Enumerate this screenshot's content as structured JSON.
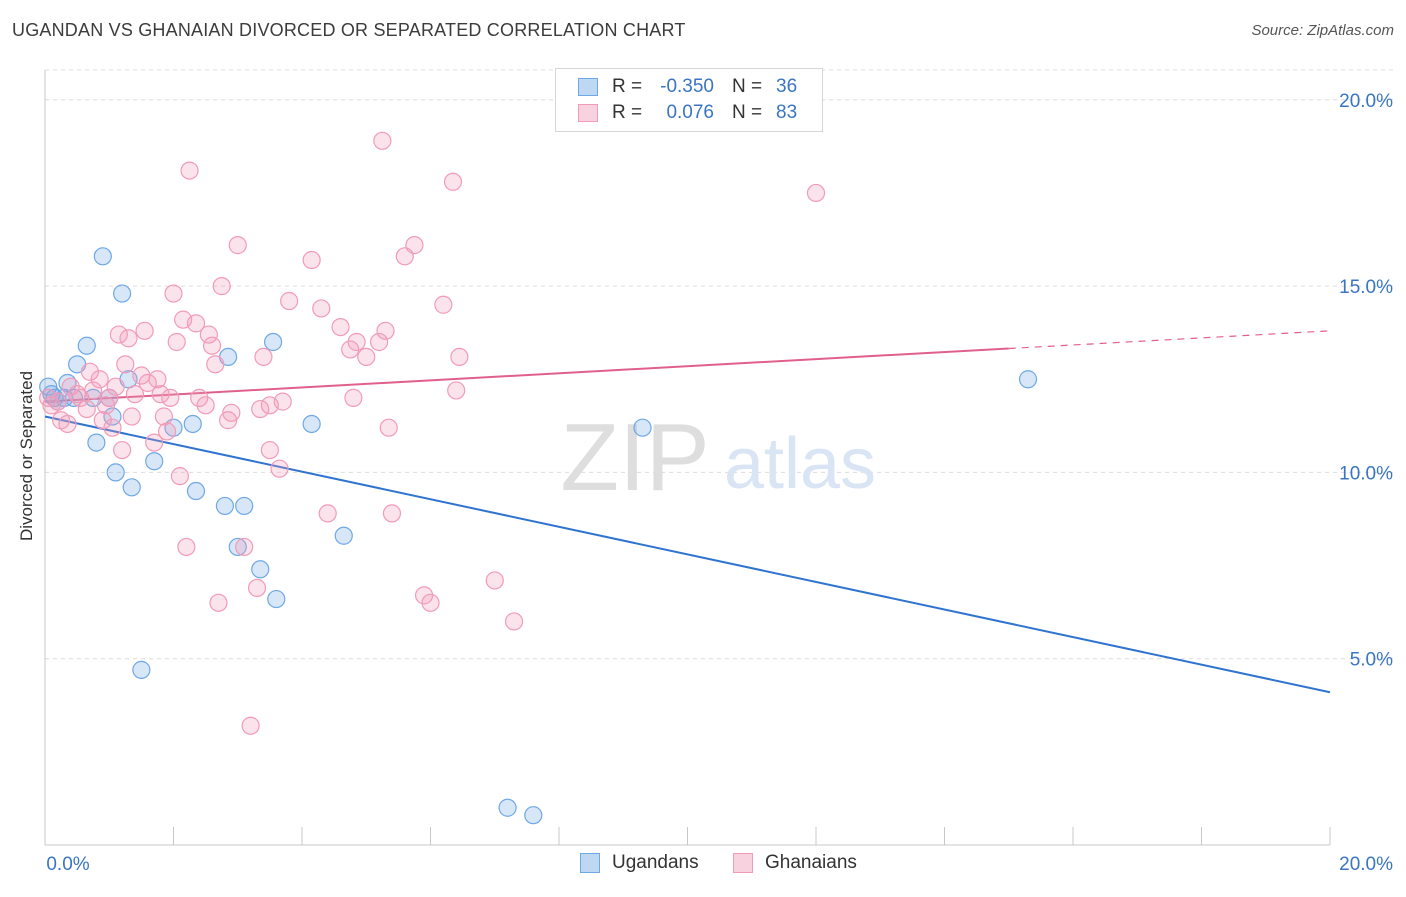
{
  "title": "UGANDAN VS GHANAIAN DIVORCED OR SEPARATED CORRELATION CHART",
  "source": "Source: ZipAtlas.com",
  "watermark": {
    "zip": "ZIP",
    "atlas": "atlas"
  },
  "legend_top": [
    {
      "r_label": "R =",
      "r_value": "-0.350",
      "n_label": "N =",
      "n_value": "36",
      "color": "#6fa8e6"
    },
    {
      "r_label": "R =",
      "r_value": "0.076",
      "n_label": "N =",
      "n_value": "83",
      "color": "#f29bb8"
    }
  ],
  "legend_bottom": [
    {
      "label": "Ugandans",
      "color": "#6fa8e6"
    },
    {
      "label": "Ghanaians",
      "color": "#f29bb8"
    }
  ],
  "chart_data": {
    "type": "scatter",
    "title": "UGANDAN VS GHANAIAN DIVORCED OR SEPARATED CORRELATION CHART",
    "xlabel": "",
    "ylabel": "Divorced or Separated",
    "xlim": [
      0,
      20
    ],
    "ylim": [
      0,
      20.8
    ],
    "x_tick_labels": [
      "0.0%",
      "20.0%"
    ],
    "y_ticks": [
      5,
      10,
      15,
      20
    ],
    "y_tick_labels": [
      "5.0%",
      "10.0%",
      "15.0%",
      "20.0%"
    ],
    "grid": true,
    "legend_position": "top-center",
    "series": [
      {
        "name": "Ugandans",
        "color": "#6fa8e6",
        "line_color": "#2f74d0",
        "trend": {
          "x": [
            0,
            20
          ],
          "y": [
            11.5,
            4.1
          ],
          "dashed_from": null
        },
        "points": [
          [
            0.05,
            12.3
          ],
          [
            0.1,
            12.1
          ],
          [
            0.15,
            12.0
          ],
          [
            0.2,
            11.9
          ],
          [
            0.3,
            12.0
          ],
          [
            0.35,
            12.4
          ],
          [
            0.45,
            12.0
          ],
          [
            0.5,
            12.9
          ],
          [
            0.65,
            13.4
          ],
          [
            0.75,
            12.0
          ],
          [
            0.8,
            10.8
          ],
          [
            0.9,
            15.8
          ],
          [
            1.0,
            12.0
          ],
          [
            1.05,
            11.5
          ],
          [
            1.1,
            10.0
          ],
          [
            1.2,
            14.8
          ],
          [
            1.3,
            12.5
          ],
          [
            1.35,
            9.6
          ],
          [
            1.5,
            4.7
          ],
          [
            1.7,
            10.3
          ],
          [
            2.0,
            11.2
          ],
          [
            2.3,
            11.3
          ],
          [
            2.35,
            9.5
          ],
          [
            2.8,
            9.1
          ],
          [
            2.85,
            13.1
          ],
          [
            3.0,
            8.0
          ],
          [
            3.1,
            9.1
          ],
          [
            3.35,
            7.4
          ],
          [
            3.55,
            13.5
          ],
          [
            3.6,
            6.6
          ],
          [
            4.15,
            11.3
          ],
          [
            4.65,
            8.3
          ],
          [
            7.2,
            1.0
          ],
          [
            7.6,
            0.8
          ],
          [
            9.3,
            11.2
          ],
          [
            15.3,
            12.5
          ]
        ]
      },
      {
        "name": "Ghanaians",
        "color": "#f29bb8",
        "line_color": "#e0608a",
        "trend": {
          "x": [
            0,
            20
          ],
          "y": [
            11.9,
            13.8
          ],
          "dashed_from": 15.0
        },
        "points": [
          [
            0.05,
            12.0
          ],
          [
            0.1,
            11.8
          ],
          [
            0.2,
            11.9
          ],
          [
            0.25,
            11.4
          ],
          [
            0.35,
            11.3
          ],
          [
            0.4,
            12.3
          ],
          [
            0.5,
            12.1
          ],
          [
            0.55,
            12.0
          ],
          [
            0.65,
            11.7
          ],
          [
            0.7,
            12.7
          ],
          [
            0.75,
            12.2
          ],
          [
            0.85,
            12.5
          ],
          [
            0.9,
            11.4
          ],
          [
            0.95,
            11.8
          ],
          [
            1.0,
            12.0
          ],
          [
            1.05,
            11.2
          ],
          [
            1.1,
            12.3
          ],
          [
            1.15,
            13.7
          ],
          [
            1.2,
            10.6
          ],
          [
            1.25,
            12.9
          ],
          [
            1.3,
            13.6
          ],
          [
            1.35,
            11.5
          ],
          [
            1.4,
            12.1
          ],
          [
            1.5,
            12.6
          ],
          [
            1.55,
            13.8
          ],
          [
            1.6,
            12.4
          ],
          [
            1.7,
            10.8
          ],
          [
            1.75,
            12.5
          ],
          [
            1.8,
            12.1
          ],
          [
            1.85,
            11.5
          ],
          [
            1.9,
            11.1
          ],
          [
            1.95,
            12.0
          ],
          [
            2.0,
            14.8
          ],
          [
            2.05,
            13.5
          ],
          [
            2.1,
            9.9
          ],
          [
            2.15,
            14.1
          ],
          [
            2.2,
            8.0
          ],
          [
            2.25,
            18.1
          ],
          [
            2.35,
            14.0
          ],
          [
            2.4,
            12.0
          ],
          [
            2.5,
            11.8
          ],
          [
            2.55,
            13.7
          ],
          [
            2.6,
            13.4
          ],
          [
            2.65,
            12.9
          ],
          [
            2.7,
            6.5
          ],
          [
            2.75,
            15.0
          ],
          [
            2.85,
            11.4
          ],
          [
            2.9,
            11.6
          ],
          [
            3.0,
            16.1
          ],
          [
            3.1,
            8.0
          ],
          [
            3.2,
            3.2
          ],
          [
            3.3,
            6.9
          ],
          [
            3.35,
            11.7
          ],
          [
            3.4,
            13.1
          ],
          [
            3.5,
            11.8
          ],
          [
            3.5,
            10.6
          ],
          [
            3.65,
            10.1
          ],
          [
            3.7,
            11.9
          ],
          [
            3.8,
            14.6
          ],
          [
            4.15,
            15.7
          ],
          [
            4.3,
            14.4
          ],
          [
            4.4,
            8.9
          ],
          [
            4.6,
            13.9
          ],
          [
            4.75,
            13.3
          ],
          [
            4.8,
            12.0
          ],
          [
            4.85,
            13.5
          ],
          [
            5.0,
            13.1
          ],
          [
            5.2,
            13.5
          ],
          [
            5.25,
            18.9
          ],
          [
            5.3,
            13.8
          ],
          [
            5.35,
            11.2
          ],
          [
            5.4,
            8.9
          ],
          [
            5.6,
            15.8
          ],
          [
            5.75,
            16.1
          ],
          [
            5.9,
            6.7
          ],
          [
            6.0,
            6.5
          ],
          [
            6.2,
            14.5
          ],
          [
            6.35,
            17.8
          ],
          [
            6.4,
            12.2
          ],
          [
            6.45,
            13.1
          ],
          [
            7.0,
            7.1
          ],
          [
            7.3,
            6.0
          ],
          [
            12.0,
            17.5
          ]
        ]
      }
    ]
  }
}
